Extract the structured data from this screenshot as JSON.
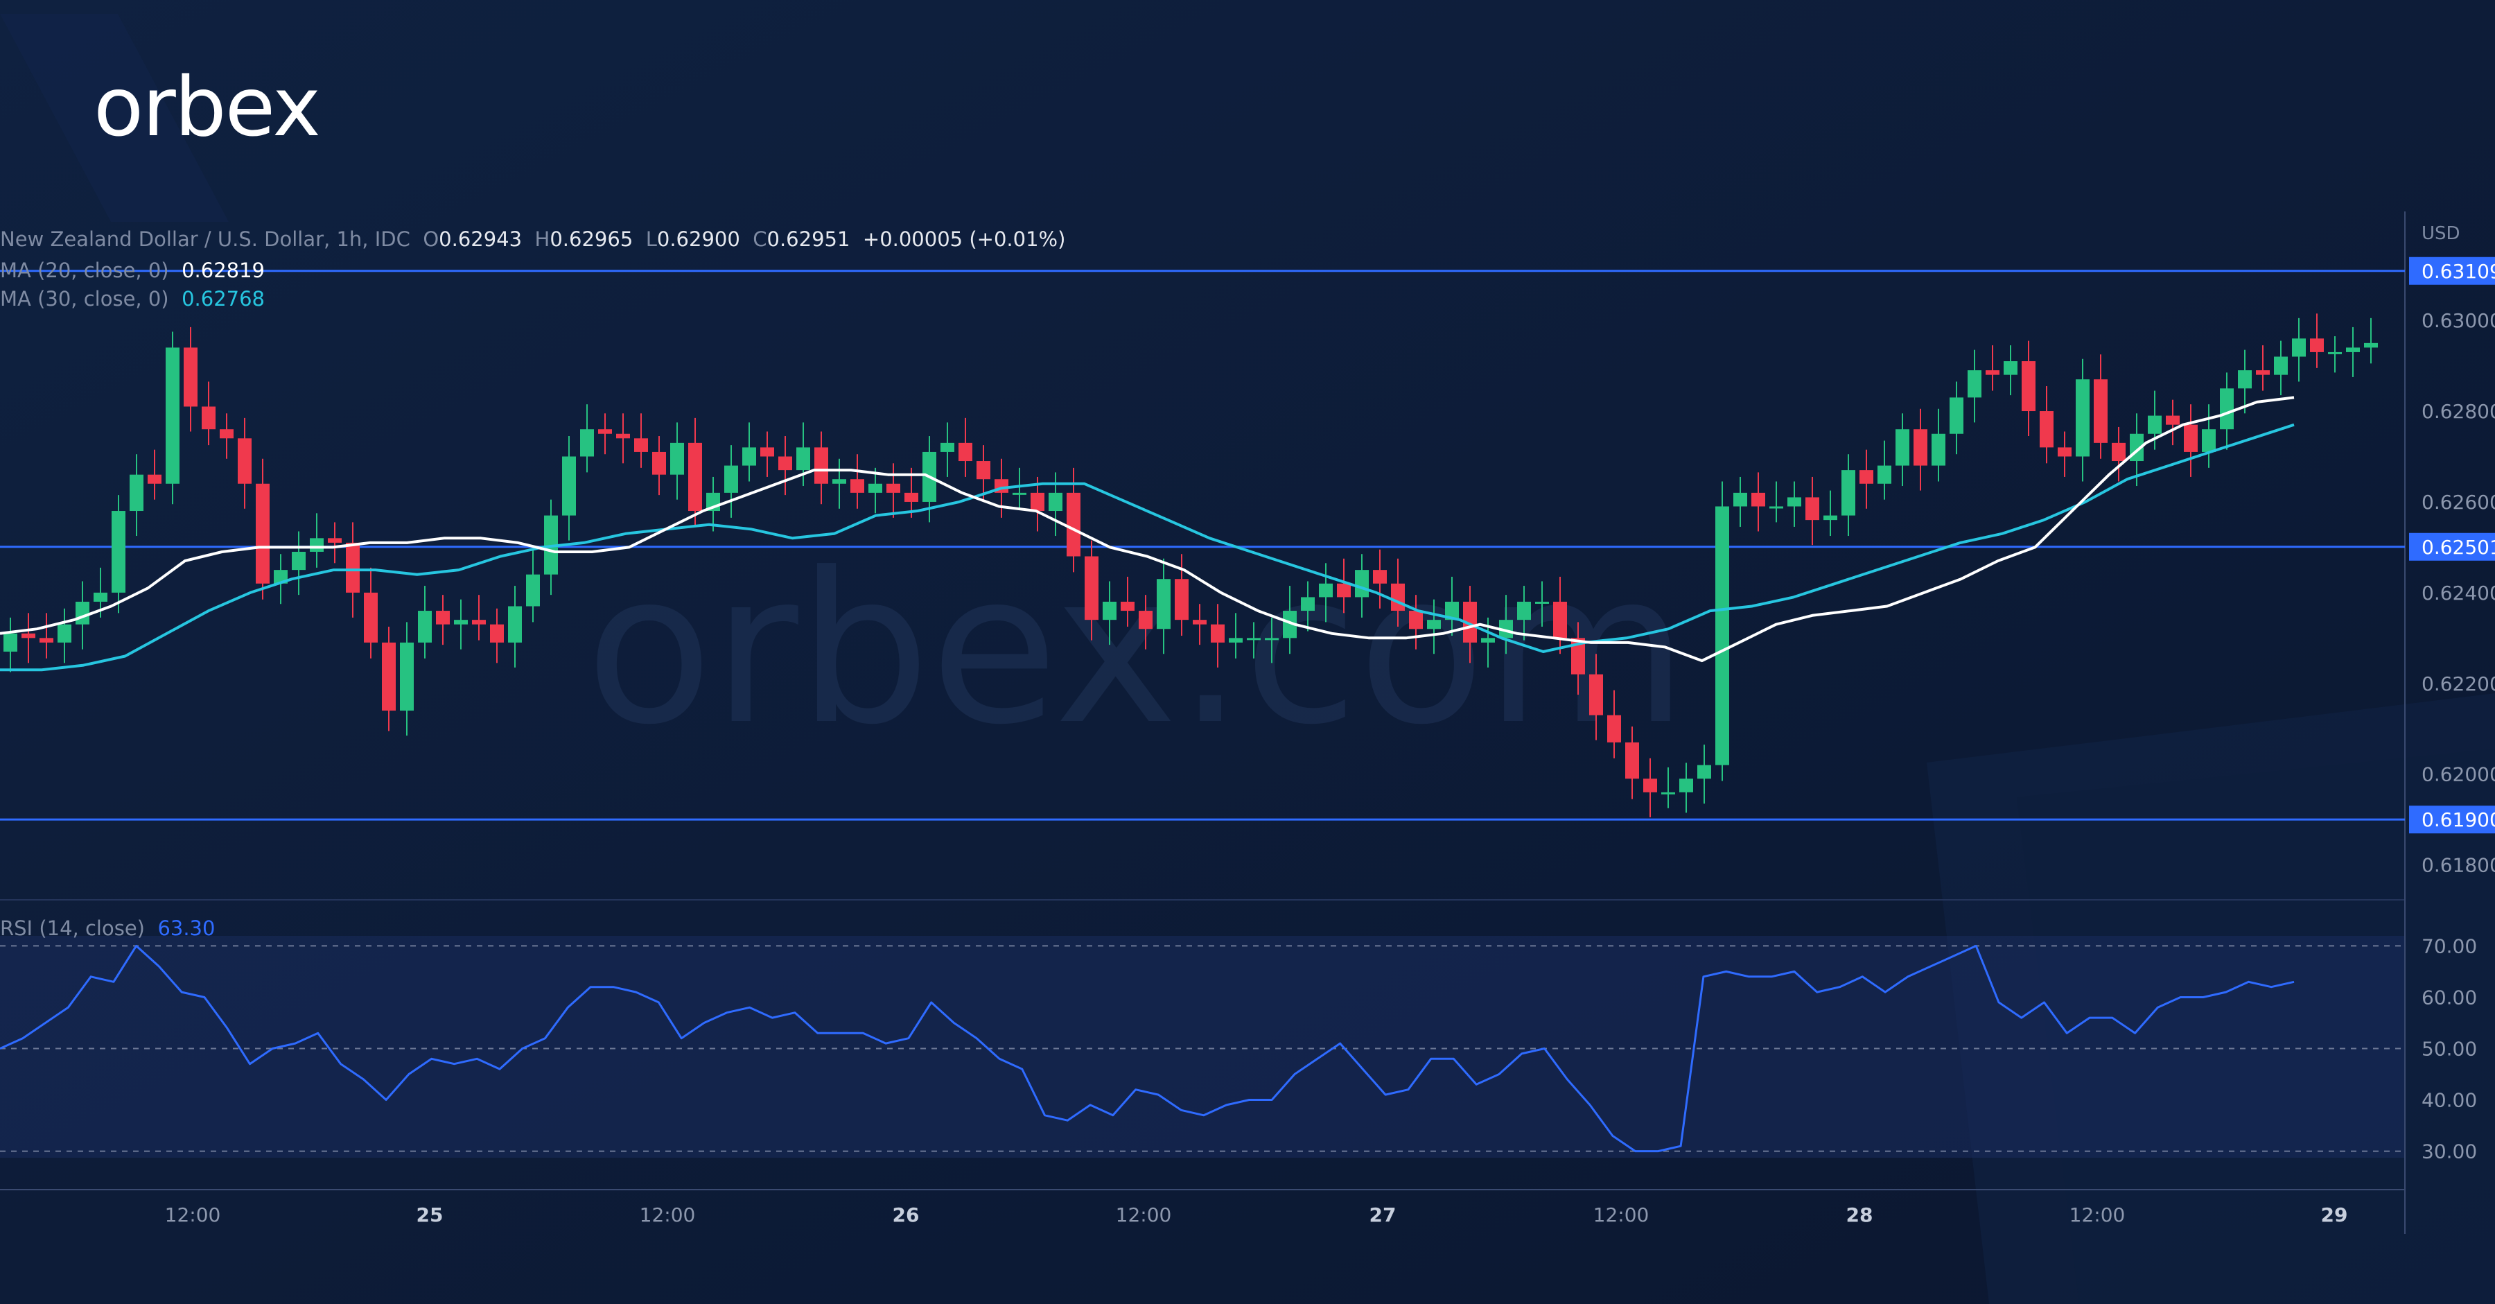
{
  "brand": {
    "logo_text": "orbex",
    "watermark": "orbex.com"
  },
  "legend": {
    "symbol": "New Zealand Dollar / U.S. Dollar, 1h, IDC",
    "o_key": "O",
    "o_val": "0.62943",
    "h_key": "H",
    "h_val": "0.62965",
    "l_key": "L",
    "l_val": "0.62900",
    "c_key": "C",
    "c_val": "0.62951",
    "change": "+0.00005 (+0.01%)",
    "ma20_label": "MA (20, close, 0)",
    "ma20_val": "0.62819",
    "ma30_label": "MA (30, close, 0)",
    "ma30_val": "0.62768",
    "rsi_label": "RSI (14, close)",
    "rsi_val": "63.30"
  },
  "colors": {
    "background": "#0d1b33",
    "up": "#26c281",
    "down": "#f0394d",
    "ma20": "#ffffff",
    "ma30": "#27c6e0",
    "level_line": "#2f6bff",
    "rsi_line": "#2f6bff"
  },
  "chart_data": {
    "type": "candlestick",
    "title": "New Zealand Dollar / U.S. Dollar, 1h, IDC",
    "currency": "USD",
    "y_ticks": [
      "0.63000",
      "0.62800",
      "0.62600",
      "0.62400",
      "0.62200",
      "0.62000",
      "0.61800"
    ],
    "ylim": [
      0.6172,
      0.6324
    ],
    "x_ticks": [
      "12:00",
      "25",
      "12:00",
      "26",
      "12:00",
      "27",
      "12:00",
      "28",
      "12:00",
      "29"
    ],
    "levels": [
      "0.63109",
      "0.62501",
      "0.61900"
    ],
    "candles_close": [
      0.6231,
      0.623,
      0.6229,
      0.6233,
      0.6238,
      0.624,
      0.6258,
      0.6266,
      0.6264,
      0.6294,
      0.6281,
      0.6276,
      0.6274,
      0.6264,
      0.6242,
      0.6245,
      0.6249,
      0.6252,
      0.6251,
      0.624,
      0.6229,
      0.6214,
      0.6229,
      0.6236,
      0.6233,
      0.6234,
      0.6233,
      0.6229,
      0.6237,
      0.6244,
      0.6257,
      0.627,
      0.6276,
      0.6275,
      0.6274,
      0.6271,
      0.6266,
      0.6273,
      0.6258,
      0.6262,
      0.6268,
      0.6272,
      0.627,
      0.6267,
      0.6272,
      0.6264,
      0.6265,
      0.6262,
      0.6264,
      0.6262,
      0.626,
      0.6271,
      0.6273,
      0.6269,
      0.6265,
      0.6262,
      0.6262,
      0.6258,
      0.6262,
      0.6248,
      0.6234,
      0.6238,
      0.6236,
      0.6232,
      0.6243,
      0.6234,
      0.6233,
      0.6229,
      0.623,
      0.623,
      0.623,
      0.6236,
      0.6239,
      0.6242,
      0.6239,
      0.6245,
      0.6242,
      0.6236,
      0.6232,
      0.6234,
      0.6238,
      0.6229,
      0.623,
      0.6234,
      0.6238,
      0.6238,
      0.623,
      0.6222,
      0.6213,
      0.6207,
      0.6199,
      0.6196,
      0.6196,
      0.6199,
      0.6202,
      0.6259,
      0.6262,
      0.6259,
      0.6259,
      0.6261,
      0.6256,
      0.6257,
      0.6267,
      0.6264,
      0.6268,
      0.6276,
      0.6268,
      0.6275,
      0.6283,
      0.6289,
      0.6288,
      0.6291,
      0.628,
      0.6272,
      0.627,
      0.6287,
      0.6273,
      0.6269,
      0.6275,
      0.6279,
      0.6277,
      0.6271,
      0.6276,
      0.6285,
      0.6289,
      0.6288,
      0.6292,
      0.6296,
      0.6293,
      0.6293,
      0.6294,
      0.6295
    ],
    "ma20": [
      0.6231,
      0.6232,
      0.6234,
      0.6237,
      0.6241,
      0.6247,
      0.6249,
      0.625,
      0.625,
      0.625,
      0.6251,
      0.6251,
      0.6252,
      0.6252,
      0.6251,
      0.6249,
      0.6249,
      0.625,
      0.6254,
      0.6258,
      0.6261,
      0.6264,
      0.6267,
      0.6267,
      0.6266,
      0.6266,
      0.6262,
      0.6259,
      0.6258,
      0.6254,
      0.625,
      0.6248,
      0.6245,
      0.624,
      0.6236,
      0.6233,
      0.6231,
      0.623,
      0.623,
      0.6231,
      0.6233,
      0.6231,
      0.623,
      0.6229,
      0.6229,
      0.6228,
      0.6225,
      0.6229,
      0.6233,
      0.6235,
      0.6236,
      0.6237,
      0.624,
      0.6243,
      0.6247,
      0.625,
      0.6258,
      0.6266,
      0.6273,
      0.6277,
      0.6279,
      0.6282,
      0.6283
    ],
    "ma30": [
      0.6223,
      0.6223,
      0.6224,
      0.6226,
      0.6231,
      0.6236,
      0.624,
      0.6243,
      0.6245,
      0.6245,
      0.6244,
      0.6245,
      0.6248,
      0.625,
      0.6251,
      0.6253,
      0.6254,
      0.6255,
      0.6254,
      0.6252,
      0.6253,
      0.6257,
      0.6258,
      0.626,
      0.6263,
      0.6264,
      0.6264,
      0.626,
      0.6256,
      0.6252,
      0.6249,
      0.6246,
      0.6243,
      0.624,
      0.6236,
      0.6234,
      0.623,
      0.6227,
      0.6229,
      0.623,
      0.6232,
      0.6236,
      0.6237,
      0.6239,
      0.6242,
      0.6245,
      0.6248,
      0.6251,
      0.6253,
      0.6256,
      0.626,
      0.6265,
      0.6268,
      0.6271,
      0.6274,
      0.6277
    ],
    "rsi": {
      "ticks": [
        "70.00",
        "60.00",
        "50.00",
        "40.00",
        "30.00"
      ],
      "ylim": [
        24,
        76
      ],
      "values": [
        50,
        52,
        55,
        58,
        64,
        63,
        70,
        66,
        61,
        60,
        54,
        47,
        50,
        51,
        53,
        47,
        44,
        40,
        45,
        48,
        47,
        48,
        46,
        50,
        52,
        58,
        62,
        62,
        61,
        59,
        52,
        55,
        57,
        58,
        56,
        57,
        53,
        53,
        53,
        51,
        52,
        59,
        55,
        52,
        48,
        46,
        37,
        36,
        39,
        37,
        42,
        41,
        38,
        37,
        39,
        40,
        40,
        45,
        48,
        51,
        46,
        41,
        42,
        48,
        48,
        43,
        45,
        49,
        50,
        44,
        39,
        33,
        30,
        30,
        31,
        64,
        65,
        64,
        64,
        65,
        61,
        62,
        64,
        61,
        64,
        66,
        68,
        70,
        59,
        56,
        59,
        53,
        56,
        56,
        53,
        58,
        60,
        60,
        61,
        63,
        62,
        63
      ]
    }
  }
}
